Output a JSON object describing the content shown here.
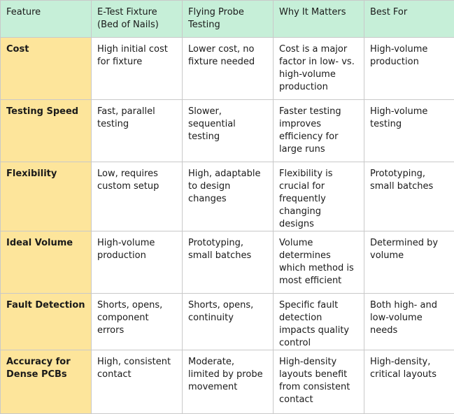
{
  "headers": [
    "Feature",
    "E-Test Fixture (Bed of Nails)",
    "Flying Probe Testing",
    "Why It Matters",
    "Best For"
  ],
  "rows": [
    [
      "Cost",
      "High initial cost for fixture",
      "Lower cost, no fixture needed",
      "Cost is a major factor in low- vs. high-volume production",
      "High-volume production"
    ],
    [
      "Testing Speed",
      "Fast, parallel testing",
      "Slower, sequential testing",
      "Faster testing improves efficiency for large runs",
      "High-volume testing"
    ],
    [
      "Flexibility",
      "Low, requires custom setup",
      "High, adaptable to design changes",
      "Flexibility is crucial for frequently changing designs",
      "Prototyping, small batches"
    ],
    [
      "Ideal Volume",
      "High-volume production",
      "Prototyping, small batches",
      "Volume determines which method is most efficient",
      "Determined by volume"
    ],
    [
      "Fault Detection",
      "Shorts, opens, component errors",
      "Shorts, opens, continuity",
      "Specific fault detection impacts quality control",
      "Both high- and low-volume needs"
    ],
    [
      "Accuracy for Dense PCBs",
      "High, consistent contact",
      "Moderate, limited by probe movement",
      "High-density layouts benefit from consistent contact",
      "High-density, critical layouts"
    ]
  ],
  "colors": {
    "header_bg": "#c6efd8",
    "feature_col_bg": "#fde59b",
    "border": "#c9c9c9"
  }
}
